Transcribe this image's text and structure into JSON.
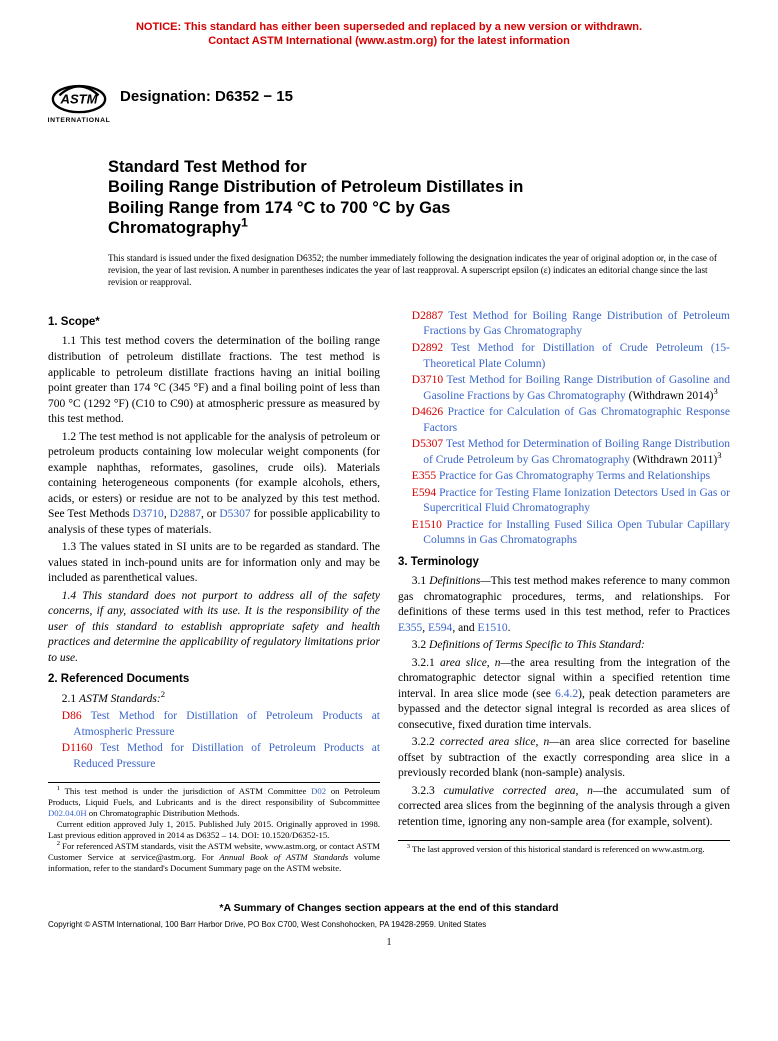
{
  "colors": {
    "notice_red": "#d40000",
    "link_blue": "#3a66c9",
    "text": "#000000",
    "background": "#ffffff"
  },
  "fonts": {
    "sans": "Arial, Helvetica, sans-serif",
    "serif": "Times New Roman, Times, serif",
    "title_size_pt": 16.5,
    "body_size_pt": 11.5,
    "notice_size_pt": 11,
    "preamble_size_pt": 9.2,
    "footnote_size_pt": 8.7
  },
  "notice": {
    "line1": "NOTICE: This standard has either been superseded and replaced by a new version or withdrawn.",
    "line2": "Contact ASTM International (www.astm.org) for the latest information"
  },
  "logo_caption": "INTERNATIONAL",
  "designation": "Designation: D6352 − 15",
  "title": {
    "line1": "Standard Test Method for",
    "line2": "Boiling Range Distribution of Petroleum Distillates in",
    "line3": "Boiling Range from 174 °C to 700 °C by Gas",
    "line4": "Chromatography"
  },
  "title_sup": "1",
  "preamble": "This standard is issued under the fixed designation D6352; the number immediately following the designation indicates the year of original adoption or, in the case of revision, the year of last revision. A number in parentheses indicates the year of last reapproval. A superscript epsilon (ε) indicates an editorial change since the last revision or reapproval.",
  "scope": {
    "heading": "1. Scope*",
    "p1": "1.1 This test method covers the determination of the boiling range distribution of petroleum distillate fractions. The test method is applicable to petroleum distillate fractions having an initial boiling point greater than 174 °C (345 °F) and a final boiling point of less than 700 °C (1292 °F) (C10 to C90) at atmospheric pressure as measured by this test method.",
    "p2_pre": "1.2 The test method is not applicable for the analysis of petroleum or petroleum products containing low molecular weight components (for example naphthas, reformates, gasolines, crude oils). Materials containing heterogeneous components (for example alcohols, ethers, acids, or esters) or residue are not to be analyzed by this test method. See Test Methods ",
    "p2_l1": "D3710",
    "p2_m1": ", ",
    "p2_l2": "D2887",
    "p2_m2": ", or ",
    "p2_l3": "D5307",
    "p2_post": " for possible applicability to analysis of these types of materials.",
    "p3": "1.3 The values stated in SI units are to be regarded as standard. The values stated in inch-pound units are for information only and may be included as parenthetical values.",
    "p4": "1.4 This standard does not purport to address all of the safety concerns, if any, associated with its use. It is the responsibility of the user of this standard to establish appropriate safety and health practices and determine the applicability of regulatory limitations prior to use."
  },
  "refdocs": {
    "heading": "2. Referenced Documents",
    "subhead_pre": "2.1 ",
    "subhead_ital": "ASTM Standards:",
    "subhead_sup": "2",
    "items_left": [
      {
        "code": "D86",
        "title": "Test Method for Distillation of Petroleum Products at Atmospheric Pressure",
        "suffix": ""
      },
      {
        "code": "D1160",
        "title": "Test Method for Distillation of Petroleum Products at Reduced Pressure",
        "suffix": ""
      }
    ],
    "items_right": [
      {
        "code": "D2887",
        "title": "Test Method for Boiling Range Distribution of Petroleum Fractions by Gas Chromatography",
        "suffix": ""
      },
      {
        "code": "D2892",
        "title": "Test Method for Distillation of Crude Petroleum (15-Theoretical Plate Column)",
        "suffix": ""
      },
      {
        "code": "D3710",
        "title": "Test Method for Boiling Range Distribution of Gasoline and Gasoline Fractions by Gas Chromatography",
        "suffix": " (Withdrawn 2014)",
        "sup": "3"
      },
      {
        "code": "D4626",
        "title": "Practice for Calculation of Gas Chromatographic Response Factors",
        "suffix": ""
      },
      {
        "code": "D5307",
        "title": "Test Method for Determination of Boiling Range Distribution of Crude Petroleum by Gas Chromatography",
        "suffix": " (Withdrawn 2011)",
        "sup": "3"
      },
      {
        "code": "E355",
        "title": "Practice for Gas Chromatography Terms and Relationships",
        "suffix": ""
      },
      {
        "code": "E594",
        "title": "Practice for Testing Flame Ionization Detectors Used in Gas or Supercritical Fluid Chromatography",
        "suffix": ""
      },
      {
        "code": "E1510",
        "title": "Practice for Installing Fused Silica Open Tubular Capillary Columns in Gas Chromatographs",
        "suffix": ""
      }
    ]
  },
  "terminology": {
    "heading": "3. Terminology",
    "p31_pre": "3.1 ",
    "p31_ital": "Definitions—",
    "p31_body": "This test method makes reference to many common gas chromatographic procedures, terms, and relationships. For definitions of these terms used in this test method, refer to Practices ",
    "p31_l1": "E355",
    "p31_m1": ", ",
    "p31_l2": "E594",
    "p31_m2": ", and ",
    "p31_l3": "E1510",
    "p31_post": ".",
    "p32_pre": "3.2 ",
    "p32_ital": "Definitions of Terms Specific to This Standard:",
    "p321_num": "3.2.1 ",
    "p321_term": "area slice, n—",
    "p321_body_a": "the area resulting from the integration of the chromatographic detector signal within a specified retention time interval. In area slice mode (see ",
    "p321_link": "6.4.2",
    "p321_body_b": "), peak detection parameters are bypassed and the detector signal integral is recorded as area slices of consecutive, fixed duration time intervals.",
    "p322_num": "3.2.2 ",
    "p322_term": "corrected area slice, n—",
    "p322_body": "an area slice corrected for baseline offset by subtraction of the exactly corresponding area slice in a previously recorded blank (non-sample) analysis.",
    "p323_num": "3.2.3 ",
    "p323_term": "cumulative corrected area, n—",
    "p323_body": "the accumulated sum of corrected area slices from the beginning of the analysis through a given retention time, ignoring any non-sample area (for example, solvent)."
  },
  "footnotes_left": {
    "f1_a": " This test method is under the jurisdiction of ASTM Committee ",
    "f1_l1": "D02",
    "f1_b": " on Petroleum Products, Liquid Fuels, and Lubricants and is the direct responsibility of Subcommittee ",
    "f1_l2": "D02.04.0H",
    "f1_c": " on Chromatographic Distribution Methods.",
    "f1_d": "Current edition approved July 1, 2015. Published July 2015. Originally approved in 1998. Last previous edition approved in 2014 as D6352 – 14. DOI: 10.1520/D6352-15.",
    "f2_a": " For referenced ASTM standards, visit the ASTM website, www.astm.org, or contact ASTM Customer Service at service@astm.org. For ",
    "f2_ital": "Annual Book of ASTM Standards",
    "f2_b": " volume information, refer to the standard's Document Summary page on the ASTM website."
  },
  "footnotes_right": {
    "f3": " The last approved version of this historical standard is referenced on www.astm.org."
  },
  "summary_line": "*A Summary of Changes section appears at the end of this standard",
  "copyright": "Copyright © ASTM International, 100 Barr Harbor Drive, PO Box C700, West Conshohocken, PA 19428-2959. United States",
  "pagenum": "1"
}
